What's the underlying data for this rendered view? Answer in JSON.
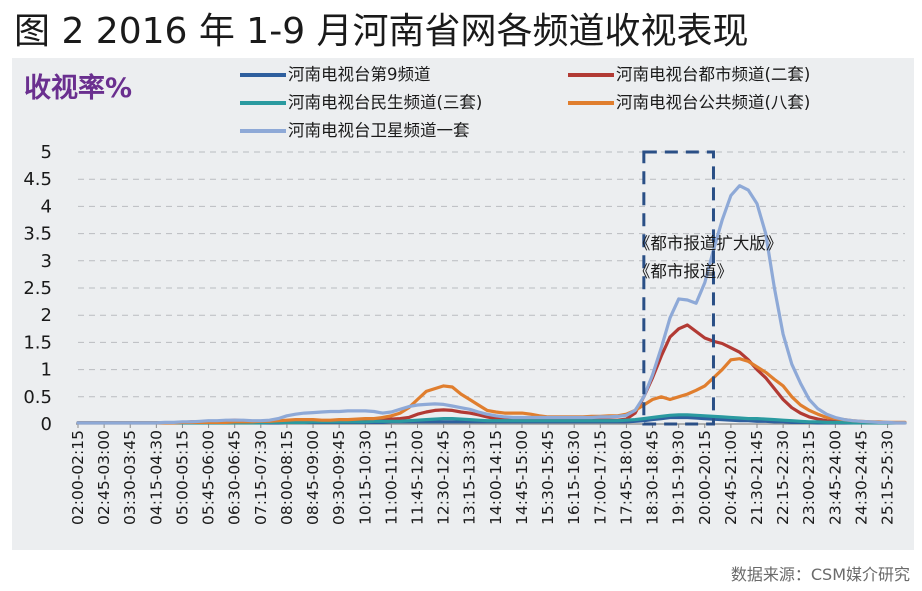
{
  "figure_title": "图 2 2016 年 1-9 月河南省网各频道收视表现",
  "source": "数据来源：CSM媒介研究",
  "chart_data": {
    "type": "line",
    "title": "图 2 2016 年 1-9 月河南省网各频道收视表现",
    "ylabel": "收视率%",
    "xlabel": "",
    "ylim": [
      0,
      5
    ],
    "yticks": [
      "0",
      "0.5",
      "1",
      "1.5",
      "2",
      "2.5",
      "3",
      "3.5",
      "4",
      "4.5",
      "5"
    ],
    "grid": "horizontal-dashed",
    "legend_position": "top",
    "annotation": {
      "lines": [
        "《都市报道扩大版》",
        "《都市报道》"
      ],
      "box_x_range": [
        "18:15-18:30",
        "20:15-20:30"
      ],
      "box_y_range": [
        0,
        5
      ]
    },
    "categories": [
      "02:00-02:15",
      "02:15-02:30",
      "02:30-02:45",
      "02:45-03:00",
      "03:00-03:15",
      "03:15-03:30",
      "03:30-03:45",
      "03:45-04:00",
      "04:00-04:15",
      "04:15-04:30",
      "04:30-04:45",
      "04:45-05:00",
      "05:00-05:15",
      "05:15-05:30",
      "05:30-05:45",
      "05:45-06:00",
      "06:00-06:15",
      "06:15-06:30",
      "06:30-06:45",
      "06:45-07:00",
      "07:00-07:15",
      "07:15-07:30",
      "07:30-07:45",
      "07:45-08:00",
      "08:00-08:15",
      "08:15-08:30",
      "08:30-08:45",
      "08:45-09:00",
      "09:00-09:15",
      "09:15-09:30",
      "09:30-09:45",
      "09:45-10:00",
      "10:00-10:15",
      "10:15-10:30",
      "10:30-10:45",
      "10:45-11:00",
      "11:00-11:15",
      "11:15-11:30",
      "11:30-11:45",
      "11:45-12:00",
      "12:00-12:15",
      "12:15-12:30",
      "12:30-12:45",
      "12:45-13:00",
      "13:00-13:15",
      "13:15-13:30",
      "13:30-13:45",
      "13:45-14:00",
      "14:00-14:15",
      "14:15-14:30",
      "14:30-14:45",
      "14:45-15:00",
      "15:00-15:15",
      "15:15-15:30",
      "15:30-15:45",
      "15:45-16:00",
      "16:00-16:15",
      "16:15-16:30",
      "16:30-16:45",
      "16:45-17:00",
      "17:00-17:15",
      "17:15-17:30",
      "17:30-17:45",
      "17:45-18:00",
      "18:00-18:15",
      "18:15-18:30",
      "18:30-18:45",
      "18:45-19:00",
      "19:00-19:15",
      "19:15-19:30",
      "19:30-19:45",
      "19:45-20:00",
      "20:00-20:15",
      "20:15-20:30",
      "20:30-20:45",
      "20:45-21:00",
      "21:00-21:15",
      "21:15-21:30",
      "21:30-21:45",
      "21:45-22:00",
      "22:00-22:15",
      "22:15-22:30",
      "22:30-22:45",
      "22:45-23:00",
      "23:00-23:15",
      "23:15-23:30",
      "23:30-23:45",
      "23:45-24:00",
      "24:00-24:15",
      "24:15-24:30",
      "24:30-24:45",
      "24:45-25:00",
      "25:00-25:15",
      "25:15-25:30",
      "25:30-25:45",
      "25:45-26:00"
    ],
    "tick_labels": [
      "02:00-02:15",
      "02:45-03:00",
      "03:30-03:45",
      "04:15-04:30",
      "05:00-05:15",
      "05:45-06:00",
      "06:30-06:45",
      "07:15-07:30",
      "08:00-08:15",
      "08:45-09:00",
      "09:30-09:45",
      "10:15-10:30",
      "11:00-11:15",
      "11:45-12:00",
      "12:30-12:45",
      "13:15-13:30",
      "14:00-14:15",
      "14:45-15:00",
      "15:30-15:45",
      "16:15-16:30",
      "17:00-17:15",
      "17:45-18:00",
      "18:30-18:45",
      "19:15-19:30",
      "20:00-20:15",
      "20:45-21:00",
      "21:30-21:45",
      "22:15-22:30",
      "23:00-23:15",
      "23:45-24:00",
      "24:30-24:45",
      "25:15-25:30"
    ],
    "series": [
      {
        "name": "河南电视台第9频道",
        "color": "#2e5f9e",
        "values": [
          0.02,
          0.02,
          0.02,
          0.02,
          0.02,
          0.02,
          0.02,
          0.02,
          0.02,
          0.02,
          0.02,
          0.02,
          0.02,
          0.02,
          0.02,
          0.02,
          0.02,
          0.02,
          0.02,
          0.02,
          0.02,
          0.02,
          0.02,
          0.02,
          0.03,
          0.03,
          0.03,
          0.03,
          0.03,
          0.03,
          0.03,
          0.03,
          0.03,
          0.03,
          0.03,
          0.03,
          0.04,
          0.04,
          0.04,
          0.04,
          0.04,
          0.04,
          0.04,
          0.04,
          0.04,
          0.04,
          0.04,
          0.04,
          0.04,
          0.04,
          0.04,
          0.04,
          0.04,
          0.04,
          0.04,
          0.04,
          0.04,
          0.04,
          0.04,
          0.04,
          0.04,
          0.04,
          0.04,
          0.04,
          0.05,
          0.06,
          0.08,
          0.1,
          0.12,
          0.12,
          0.12,
          0.11,
          0.1,
          0.09,
          0.08,
          0.07,
          0.06,
          0.06,
          0.05,
          0.05,
          0.04,
          0.04,
          0.03,
          0.03,
          0.03,
          0.02,
          0.02,
          0.02,
          0.02,
          0.02,
          0.02,
          0.02,
          0.02,
          0.02,
          0.02,
          0.02
        ]
      },
      {
        "name": "河南电视台都市频道(二套)",
        "color": "#b23a34",
        "values": [
          0.02,
          0.02,
          0.02,
          0.02,
          0.02,
          0.02,
          0.02,
          0.02,
          0.02,
          0.02,
          0.02,
          0.02,
          0.03,
          0.04,
          0.04,
          0.05,
          0.05,
          0.06,
          0.07,
          0.06,
          0.05,
          0.04,
          0.04,
          0.04,
          0.04,
          0.04,
          0.04,
          0.05,
          0.05,
          0.06,
          0.06,
          0.07,
          0.07,
          0.07,
          0.08,
          0.08,
          0.09,
          0.1,
          0.12,
          0.18,
          0.22,
          0.25,
          0.26,
          0.25,
          0.22,
          0.2,
          0.17,
          0.13,
          0.1,
          0.08,
          0.08,
          0.08,
          0.07,
          0.07,
          0.07,
          0.07,
          0.07,
          0.07,
          0.07,
          0.07,
          0.07,
          0.07,
          0.07,
          0.09,
          0.2,
          0.5,
          0.85,
          1.25,
          1.6,
          1.75,
          1.82,
          1.7,
          1.58,
          1.52,
          1.48,
          1.4,
          1.32,
          1.18,
          1.0,
          0.85,
          0.65,
          0.45,
          0.3,
          0.2,
          0.13,
          0.09,
          0.06,
          0.05,
          0.04,
          0.03,
          0.03,
          0.02,
          0.02,
          0.02,
          0.02,
          0.02
        ]
      },
      {
        "name": "河南电视台民生频道(三套)",
        "color": "#2a9aa0",
        "values": [
          0.02,
          0.02,
          0.02,
          0.02,
          0.02,
          0.02,
          0.02,
          0.02,
          0.02,
          0.02,
          0.02,
          0.02,
          0.02,
          0.02,
          0.02,
          0.02,
          0.02,
          0.02,
          0.02,
          0.02,
          0.02,
          0.02,
          0.03,
          0.03,
          0.03,
          0.03,
          0.03,
          0.04,
          0.04,
          0.04,
          0.04,
          0.04,
          0.04,
          0.04,
          0.05,
          0.05,
          0.05,
          0.05,
          0.06,
          0.07,
          0.08,
          0.09,
          0.1,
          0.1,
          0.09,
          0.08,
          0.07,
          0.06,
          0.06,
          0.06,
          0.06,
          0.06,
          0.06,
          0.06,
          0.06,
          0.06,
          0.06,
          0.06,
          0.06,
          0.06,
          0.06,
          0.06,
          0.06,
          0.07,
          0.08,
          0.1,
          0.12,
          0.14,
          0.16,
          0.17,
          0.17,
          0.16,
          0.15,
          0.14,
          0.13,
          0.12,
          0.11,
          0.1,
          0.1,
          0.09,
          0.08,
          0.07,
          0.06,
          0.05,
          0.04,
          0.04,
          0.03,
          0.03,
          0.03,
          0.02,
          0.02,
          0.02,
          0.02,
          0.02,
          0.02,
          0.02
        ]
      },
      {
        "name": "河南电视台公共频道(八套)",
        "color": "#e07e2e",
        "values": [
          0.02,
          0.02,
          0.02,
          0.02,
          0.02,
          0.02,
          0.02,
          0.02,
          0.02,
          0.02,
          0.02,
          0.02,
          0.03,
          0.03,
          0.03,
          0.03,
          0.03,
          0.03,
          0.04,
          0.04,
          0.04,
          0.05,
          0.05,
          0.06,
          0.07,
          0.08,
          0.08,
          0.08,
          0.07,
          0.07,
          0.08,
          0.08,
          0.09,
          0.1,
          0.1,
          0.12,
          0.15,
          0.2,
          0.3,
          0.45,
          0.6,
          0.65,
          0.7,
          0.68,
          0.55,
          0.45,
          0.35,
          0.25,
          0.22,
          0.2,
          0.2,
          0.2,
          0.18,
          0.15,
          0.13,
          0.13,
          0.13,
          0.13,
          0.13,
          0.14,
          0.14,
          0.15,
          0.15,
          0.18,
          0.25,
          0.35,
          0.45,
          0.5,
          0.45,
          0.5,
          0.55,
          0.62,
          0.7,
          0.85,
          1.0,
          1.18,
          1.2,
          1.15,
          1.05,
          0.95,
          0.82,
          0.7,
          0.5,
          0.35,
          0.25,
          0.18,
          0.12,
          0.1,
          0.08,
          0.06,
          0.05,
          0.04,
          0.04,
          0.03,
          0.03,
          0.03
        ]
      },
      {
        "name": "河南电视台卫星频道一套",
        "color": "#8ea9d7",
        "values": [
          0.02,
          0.02,
          0.02,
          0.02,
          0.02,
          0.02,
          0.02,
          0.02,
          0.02,
          0.02,
          0.03,
          0.03,
          0.04,
          0.04,
          0.05,
          0.06,
          0.06,
          0.07,
          0.07,
          0.07,
          0.06,
          0.06,
          0.07,
          0.1,
          0.15,
          0.18,
          0.2,
          0.21,
          0.22,
          0.23,
          0.23,
          0.24,
          0.24,
          0.24,
          0.23,
          0.2,
          0.22,
          0.27,
          0.32,
          0.35,
          0.36,
          0.37,
          0.36,
          0.33,
          0.3,
          0.27,
          0.22,
          0.18,
          0.15,
          0.13,
          0.12,
          0.12,
          0.12,
          0.12,
          0.12,
          0.12,
          0.12,
          0.12,
          0.12,
          0.12,
          0.13,
          0.13,
          0.14,
          0.16,
          0.25,
          0.5,
          0.9,
          1.4,
          1.95,
          2.3,
          2.28,
          2.22,
          2.6,
          3.2,
          3.75,
          4.2,
          4.38,
          4.3,
          4.05,
          3.5,
          2.5,
          1.65,
          1.1,
          0.75,
          0.45,
          0.28,
          0.18,
          0.12,
          0.08,
          0.06,
          0.05,
          0.04,
          0.03,
          0.03,
          0.02,
          0.02
        ]
      }
    ]
  }
}
